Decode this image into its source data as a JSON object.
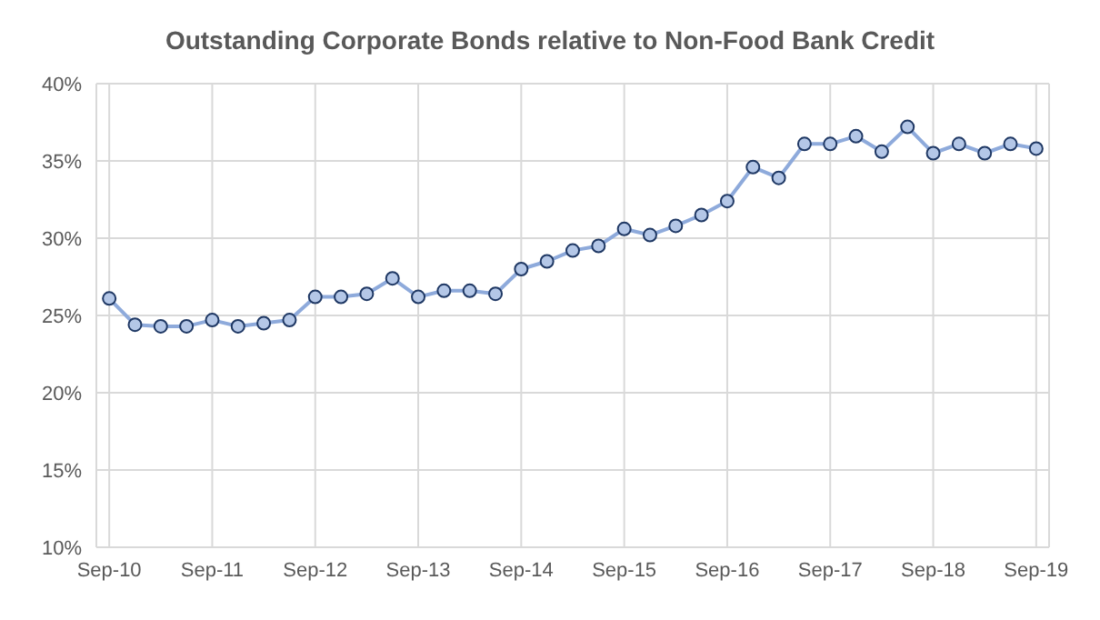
{
  "chart_data": {
    "type": "line",
    "title": "Outstanding Corporate Bonds relative to Non-Food Bank Credit",
    "categories": [
      "Sep-10",
      null,
      null,
      null,
      "Sep-11",
      null,
      null,
      null,
      "Sep-12",
      null,
      null,
      null,
      "Sep-13",
      null,
      null,
      null,
      "Sep-14",
      null,
      null,
      null,
      "Sep-15",
      null,
      null,
      null,
      "Sep-16",
      null,
      null,
      null,
      "Sep-17",
      null,
      null,
      null,
      "Sep-18",
      null,
      null,
      null,
      "Sep-19"
    ],
    "series": [
      {
        "color": "#8eaadb",
        "values": [
          26.1,
          24.4,
          24.3,
          24.3,
          24.7,
          24.3,
          24.5,
          24.7,
          26.2,
          26.2,
          26.4,
          27.4,
          26.2,
          26.6,
          26.6,
          26.4,
          28.0,
          28.5,
          29.2,
          29.5,
          30.6,
          30.2,
          30.8,
          31.5,
          32.4,
          34.6,
          33.9,
          36.1,
          36.1,
          36.6,
          35.6,
          37.2,
          35.5,
          36.1,
          35.5,
          36.1,
          35.8
        ]
      }
    ],
    "ylim": [
      10,
      40
    ],
    "yticks": [
      {
        "value": 10,
        "label": "10%"
      },
      {
        "value": 15,
        "label": "15%"
      },
      {
        "value": 20,
        "label": "20%"
      },
      {
        "value": 25,
        "label": "25%"
      },
      {
        "value": 30,
        "label": "30%"
      },
      {
        "value": 35,
        "label": "35%"
      },
      {
        "value": 40,
        "label": "40%"
      }
    ],
    "grid": true,
    "marker": "circle",
    "line_style": "solid"
  }
}
